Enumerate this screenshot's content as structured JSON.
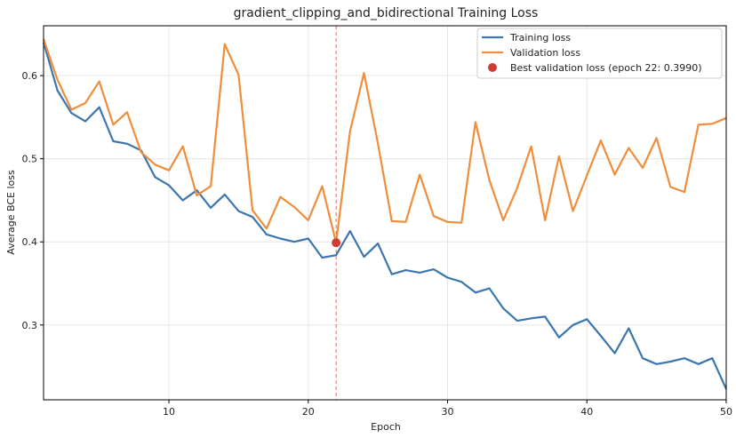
{
  "chart_data": {
    "type": "line",
    "title": "gradient_clipping_and_bidirectional Training Loss",
    "xlabel": "Epoch",
    "ylabel": "Average BCE loss",
    "xlim": [
      1,
      50
    ],
    "ylim": [
      0.21,
      0.66
    ],
    "x_ticks": [
      10,
      20,
      30,
      40,
      50
    ],
    "y_ticks": [
      0.3,
      0.4,
      0.5,
      0.6
    ],
    "grid": true,
    "legend_position": "top-right",
    "x": [
      1,
      2,
      3,
      4,
      5,
      6,
      7,
      8,
      9,
      10,
      11,
      12,
      13,
      14,
      15,
      16,
      17,
      18,
      19,
      20,
      21,
      22,
      23,
      24,
      25,
      26,
      27,
      28,
      29,
      30,
      31,
      32,
      33,
      34,
      35,
      36,
      37,
      38,
      39,
      40,
      41,
      42,
      43,
      44,
      45,
      46,
      47,
      48,
      49,
      50
    ],
    "series": [
      {
        "name": "Training loss",
        "color": "#3b76af",
        "values": [
          0.64,
          0.582,
          0.555,
          0.545,
          0.562,
          0.521,
          0.518,
          0.51,
          0.478,
          0.468,
          0.45,
          0.462,
          0.441,
          0.457,
          0.437,
          0.43,
          0.409,
          0.404,
          0.4,
          0.404,
          0.381,
          0.384,
          0.413,
          0.382,
          0.398,
          0.361,
          0.366,
          0.363,
          0.367,
          0.357,
          0.352,
          0.339,
          0.344,
          0.32,
          0.305,
          0.308,
          0.31,
          0.285,
          0.3,
          0.307,
          0.287,
          0.266,
          0.296,
          0.26,
          0.253,
          0.256,
          0.26,
          0.253,
          0.26,
          0.223
        ]
      },
      {
        "name": "Validation loss",
        "color": "#ef8d3a",
        "values": [
          0.644,
          0.595,
          0.559,
          0.567,
          0.593,
          0.541,
          0.556,
          0.508,
          0.493,
          0.486,
          0.515,
          0.456,
          0.467,
          0.638,
          0.601,
          0.438,
          0.416,
          0.454,
          0.442,
          0.426,
          0.467,
          0.399,
          0.533,
          0.603,
          0.518,
          0.425,
          0.424,
          0.481,
          0.431,
          0.424,
          0.423,
          0.544,
          0.474,
          0.426,
          0.465,
          0.515,
          0.426,
          0.503,
          0.437,
          0.48,
          0.522,
          0.481,
          0.513,
          0.489,
          0.525,
          0.466,
          0.46,
          0.541,
          0.542,
          0.549
        ]
      }
    ],
    "best_point": {
      "epoch": 22,
      "value": 0.399,
      "label": "Best validation loss (epoch 22: 0.3990)",
      "color": "#cc3d33"
    },
    "vline": {
      "x": 22,
      "color": "#e06a5a"
    }
  }
}
